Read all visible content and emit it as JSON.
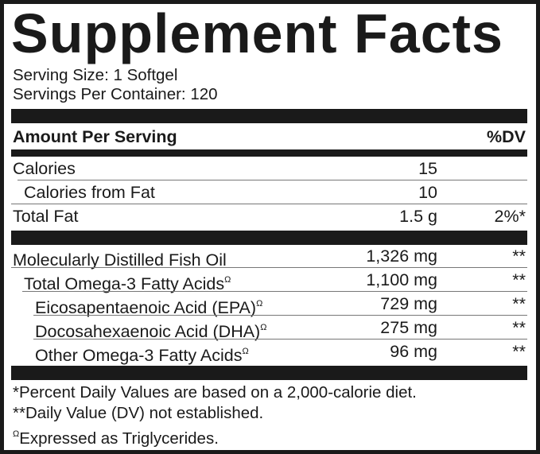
{
  "title": "Supplement Facts",
  "serving_size": "Serving Size: 1 Softgel",
  "servings_per_container": "Servings Per Container: 120",
  "header": {
    "amount": "Amount Per Serving",
    "dv": "%DV"
  },
  "rows_a": [
    {
      "name": "Calories",
      "amount": "15",
      "dv": ""
    },
    {
      "name": "Calories from Fat",
      "amount": "10",
      "dv": ""
    },
    {
      "name": "Total Fat",
      "amount": "1.5 g",
      "dv": "2%*"
    }
  ],
  "rows_b": [
    {
      "name": "Molecularly Distilled Fish Oil",
      "mark": "",
      "amount": "1,326 mg",
      "dv": "**"
    },
    {
      "name": "Total Omega-3 Fatty Acids",
      "mark": "Ω",
      "amount": "1,100 mg",
      "dv": "**"
    },
    {
      "name": "Eicosapentaenoic Acid (EPA)",
      "mark": "Ω",
      "amount": "729 mg",
      "dv": "**"
    },
    {
      "name": "Docosahexaenoic Acid (DHA)",
      "mark": "Ω",
      "amount": "275 mg",
      "dv": "**"
    },
    {
      "name": "Other Omega-3 Fatty Acids",
      "mark": "Ω",
      "amount": "96 mg",
      "dv": "**"
    }
  ],
  "footnotes": {
    "f1": "*Percent Daily Values are based on a 2,000-calorie diet.",
    "f2": "**Daily Value (DV) not established.",
    "f3_mark": "Ω",
    "f3": "Expressed as Triglycerides."
  }
}
